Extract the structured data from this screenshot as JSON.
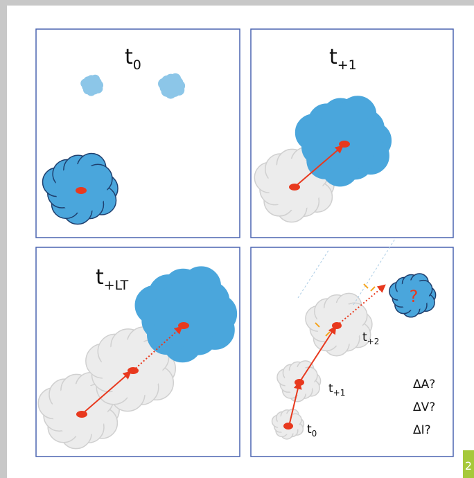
{
  "panels": [
    {
      "label": {
        "base": "t",
        "sub": "0"
      }
    },
    {
      "label": {
        "base": "t",
        "sub": "+1"
      }
    },
    {
      "label": {
        "base": "t",
        "sub": "+LT"
      }
    },
    {
      "labels": [
        {
          "base": "t",
          "sub": "+2"
        },
        {
          "base": "t",
          "sub": "+1"
        },
        {
          "base": "t",
          "sub": "0"
        }
      ],
      "question": "?",
      "deltas": [
        "ΔA?",
        "ΔV?",
        "ΔI?"
      ]
    }
  ],
  "page_number": "2"
}
